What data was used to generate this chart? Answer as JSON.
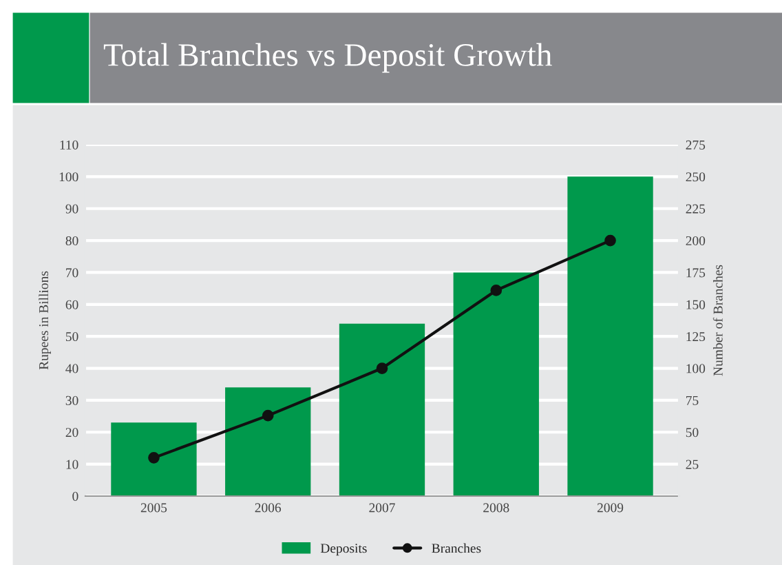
{
  "chart_data": {
    "type": "bar",
    "title": "Total Branches vs Deposit Growth",
    "categories": [
      "2005",
      "2006",
      "2007",
      "2008",
      "2009"
    ],
    "series": [
      {
        "name": "Deposits",
        "color": "#00994c",
        "values": [
          23,
          34,
          54,
          70,
          100
        ]
      },
      {
        "name": "Branches",
        "type": "line",
        "axis": "y2",
        "color": "#111111",
        "marker": "circle",
        "values": [
          30,
          63,
          100,
          161,
          200
        ]
      }
    ],
    "ylabel": "Rupees in Billions",
    "y2label": "Number of Branches",
    "ylim": [
      0,
      110
    ],
    "yticks": [
      0,
      10,
      20,
      30,
      40,
      50,
      60,
      70,
      80,
      90,
      100,
      110
    ],
    "y2lim": [
      0,
      275
    ],
    "y2ticks": [
      25,
      50,
      75,
      100,
      125,
      150,
      175,
      200,
      225,
      250,
      275
    ],
    "grid": "y",
    "legend": "bottom"
  }
}
